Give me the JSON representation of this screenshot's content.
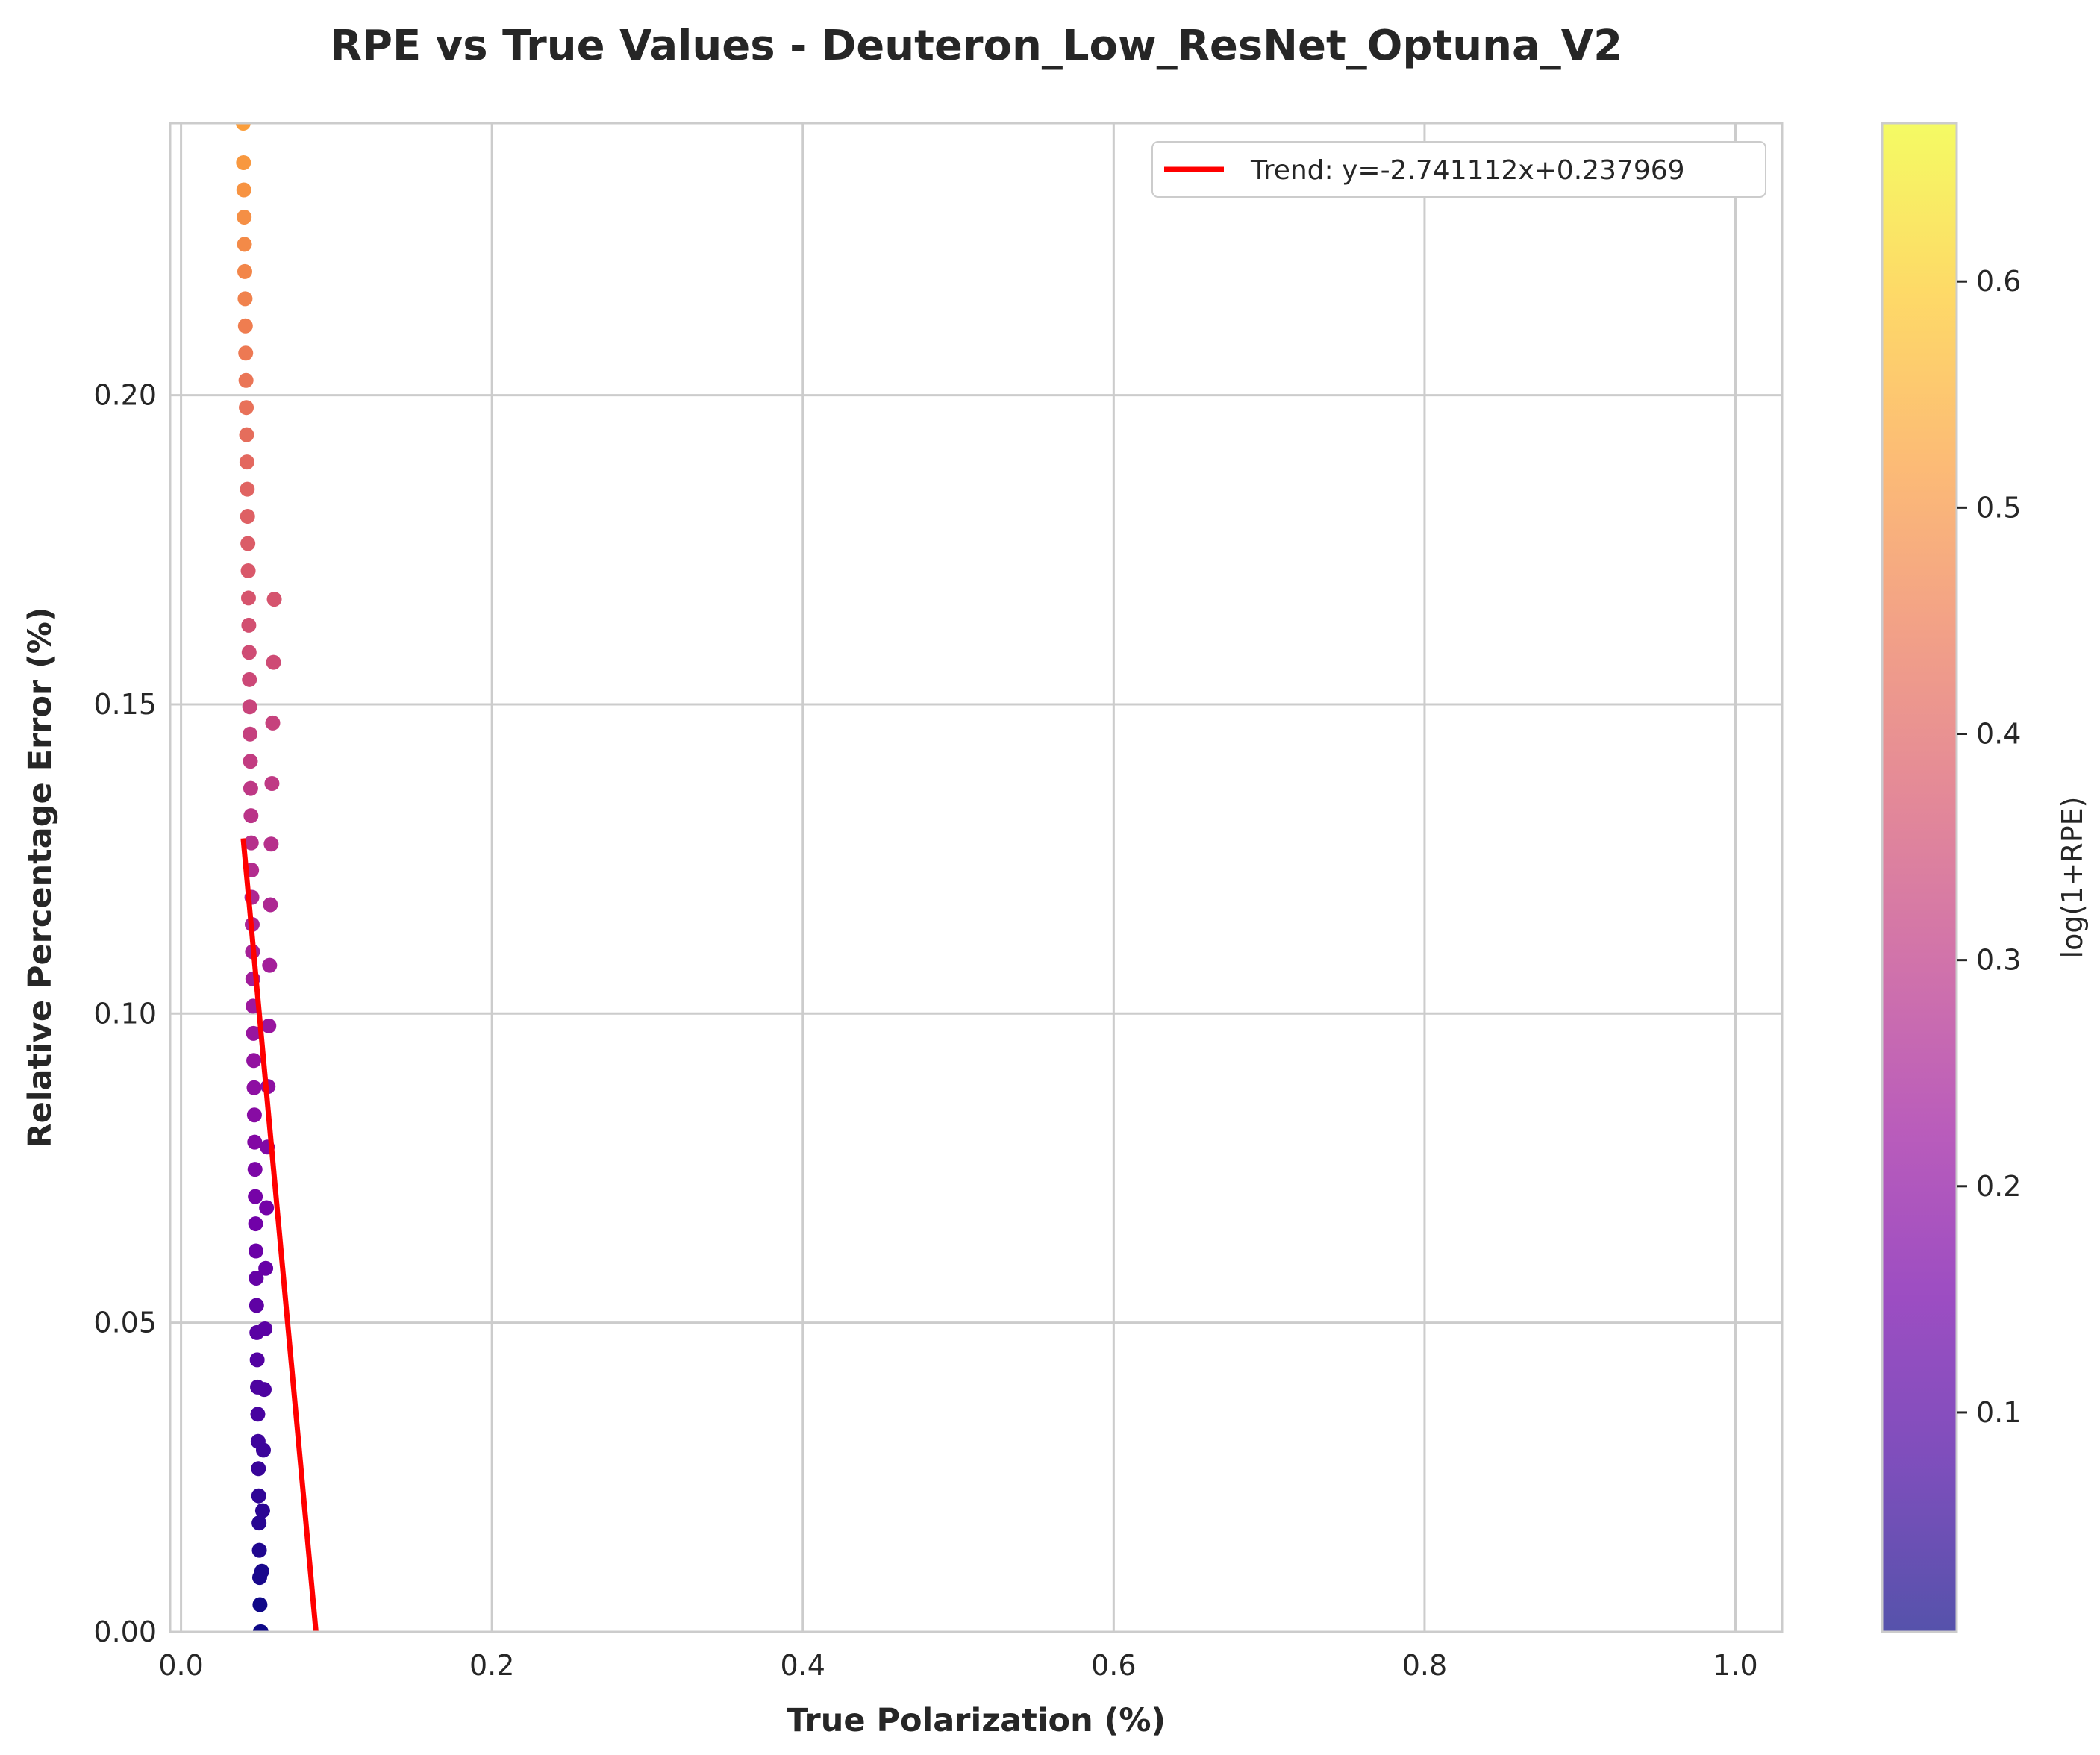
{
  "chart_data": {
    "type": "scatter",
    "title": "RPE vs True Values - Deuteron_Low_ResNet_Optuna_V2",
    "xlabel": "True Polarization (%)",
    "ylabel": "Relative Percentage Error (%)",
    "xlim": [
      -0.007,
      1.03
    ],
    "ylim": [
      0,
      0.244
    ],
    "xticks": [
      "0.0",
      "0.2",
      "0.4",
      "0.6",
      "0.8",
      "1.0"
    ],
    "xtick_values": [
      0.0,
      0.2,
      0.4,
      0.6,
      0.8,
      1.0
    ],
    "yticks": [
      "0.00",
      "0.05",
      "0.10",
      "0.15",
      "0.20"
    ],
    "ytick_values": [
      0.0,
      0.05,
      0.1,
      0.15,
      0.2
    ],
    "grid": true,
    "legend": {
      "placement": "top-right",
      "entries": [
        "Trend: y=-2.741112x+0.237969"
      ]
    },
    "trend": {
      "slope": -2.741112,
      "intercept": 0.237969,
      "x_range": [
        0.04,
        0.0868
      ],
      "color": "#ff0000"
    },
    "series": [
      {
        "x": [
          0.051,
          0.0508,
          0.0506,
          0.0504,
          0.0502,
          0.05,
          0.0498,
          0.0496,
          0.0494,
          0.0492,
          0.049,
          0.0488,
          0.0486,
          0.0484,
          0.0482,
          0.048,
          0.0478,
          0.0476,
          0.0474,
          0.0472,
          0.047,
          0.0468,
          0.0466,
          0.0464,
          0.0462,
          0.046,
          0.0458,
          0.0456,
          0.0454,
          0.0452,
          0.045,
          0.0448,
          0.0446,
          0.0444,
          0.0442,
          0.044,
          0.0438,
          0.0436,
          0.0434,
          0.0432,
          0.043,
          0.0428,
          0.0426,
          0.0424,
          0.0422,
          0.042,
          0.0418,
          0.0416,
          0.0414,
          0.0412,
          0.041,
          0.0408,
          0.0406,
          0.0404,
          0.0402,
          0.04
        ],
        "y": [
          0.0,
          0.0044,
          0.0088,
          0.0132,
          0.0176,
          0.022,
          0.0264,
          0.0308,
          0.0352,
          0.0396,
          0.044,
          0.0484,
          0.0528,
          0.0572,
          0.0616,
          0.066,
          0.0704,
          0.0748,
          0.0792,
          0.0836,
          0.088,
          0.0924,
          0.0968,
          0.1012,
          0.1056,
          0.11,
          0.1144,
          0.1188,
          0.1232,
          0.1276,
          0.132,
          0.1364,
          0.1408,
          0.1452,
          0.1496,
          0.154,
          0.1584,
          0.1628,
          0.1672,
          0.1716,
          0.176,
          0.1804,
          0.1848,
          0.1892,
          0.1936,
          0.198,
          0.2024,
          0.2068,
          0.2112,
          0.2156,
          0.22,
          0.2244,
          0.2288,
          0.2332,
          0.2376,
          0.244
        ]
      },
      {
        "x": [
          0.0515,
          0.052,
          0.0525,
          0.053,
          0.0535,
          0.054,
          0.0545,
          0.055,
          0.0555,
          0.056,
          0.0565,
          0.057,
          0.0575,
          0.058,
          0.0585,
          0.059,
          0.0595,
          0.06
        ],
        "y": [
          0.0,
          0.0098,
          0.0196,
          0.0294,
          0.0392,
          0.049,
          0.0588,
          0.0686,
          0.0784,
          0.0882,
          0.098,
          0.1078,
          0.1176,
          0.1274,
          0.1372,
          0.147,
          0.1568,
          0.167
        ]
      }
    ],
    "colorbar": {
      "label": "log(1+RPE)",
      "range": [
        0.003,
        0.67
      ],
      "ticks": [
        "0.1",
        "0.2",
        "0.3",
        "0.4",
        "0.5",
        "0.6"
      ],
      "tick_values": [
        0.1,
        0.2,
        0.3,
        0.4,
        0.5,
        0.6
      ],
      "colors": [
        "#0d0887",
        "#46039f",
        "#7201a8",
        "#9c179e",
        "#bd3786",
        "#d8576b",
        "#ed7953",
        "#fb9f3a",
        "#fdca26",
        "#f0f921"
      ],
      "alpha": 0.7
    }
  }
}
